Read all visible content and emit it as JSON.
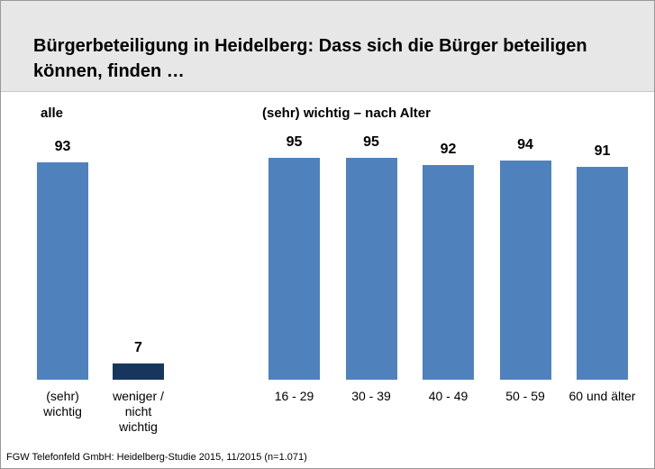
{
  "title": "Bürgerbeteiligung in Heidelberg: Dass sich die Bürger beteiligen können, finden …",
  "footer": "FGW Telefonfeld GmbH: Heidelberg-Studie 2015, 11/2015 (n=1.071)",
  "chart_data": [
    {
      "type": "bar",
      "title": "alle",
      "categories": [
        "(sehr) wichtig",
        "weniger / nicht wichtig"
      ],
      "values": [
        93,
        7
      ],
      "colors": [
        "#4f81bd",
        "#17365d"
      ]
    },
    {
      "type": "bar",
      "title": "(sehr) wichtig – nach Alter",
      "categories": [
        "16 - 29",
        "30 - 39",
        "40 - 49",
        "50 - 59",
        "60 und älter"
      ],
      "values": [
        95,
        95,
        92,
        94,
        91
      ],
      "color": "#4f81bd"
    }
  ]
}
